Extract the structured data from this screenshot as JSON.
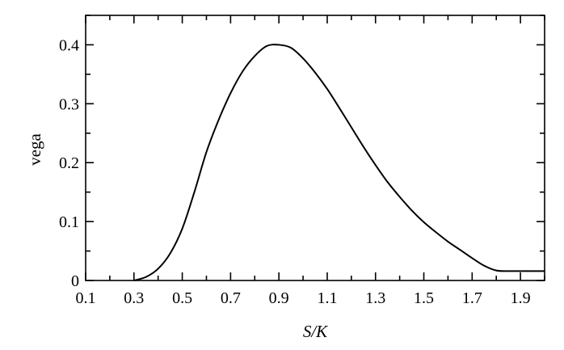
{
  "chart_data": {
    "type": "line",
    "title": "",
    "xlabel": "S/K",
    "ylabel": "vega",
    "xlim": [
      0.1,
      2.0
    ],
    "ylim": [
      0,
      0.45
    ],
    "x_ticks": [
      "0.1",
      "0.3",
      "0.5",
      "0.7",
      "0.9",
      "1.1",
      "1.3",
      "1.5",
      "1.7",
      "1.9"
    ],
    "y_ticks": [
      "0",
      "0.1",
      "0.2",
      "0.3",
      "0.4"
    ],
    "grid": false,
    "series": [
      {
        "x": [
          0.3,
          0.35,
          0.4,
          0.45,
          0.5,
          0.55,
          0.6,
          0.65,
          0.7,
          0.75,
          0.8,
          0.85,
          0.9,
          0.95,
          1.0,
          1.05,
          1.1,
          1.15,
          1.2,
          1.25,
          1.3,
          1.35,
          1.4,
          1.45,
          1.5,
          1.55,
          1.6,
          1.65,
          1.7,
          1.75,
          1.8,
          1.85,
          1.9,
          1.95,
          2.0
        ],
        "y": [
          0.0,
          0.006,
          0.02,
          0.046,
          0.088,
          0.15,
          0.218,
          0.272,
          0.318,
          0.355,
          0.381,
          0.398,
          0.4,
          0.395,
          0.377,
          0.353,
          0.325,
          0.293,
          0.26,
          0.227,
          0.196,
          0.167,
          0.142,
          0.119,
          0.099,
          0.082,
          0.066,
          0.052,
          0.038,
          0.025,
          0.017,
          0.016,
          0.016,
          0.016,
          0.016
        ]
      }
    ]
  }
}
